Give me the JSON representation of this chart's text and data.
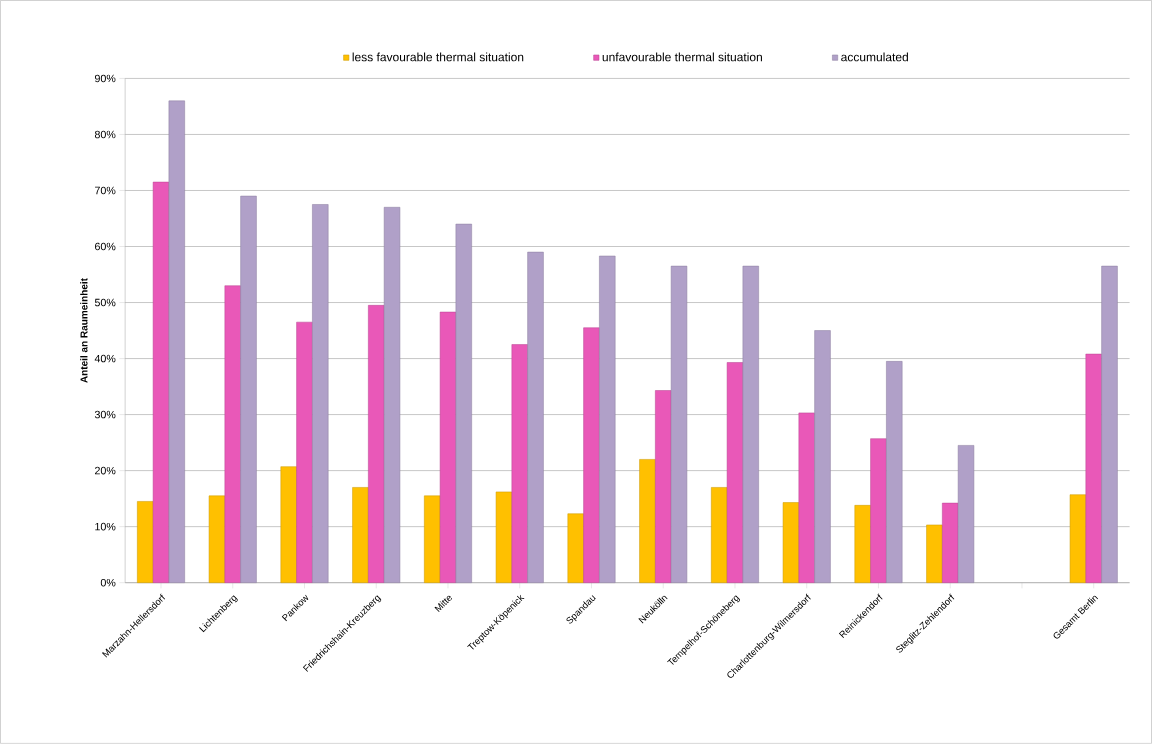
{
  "chart_data": {
    "type": "bar",
    "ylabel": "Anteil an Raumeinheit",
    "categories": [
      "Marzahn-Hellersdorf",
      "Lichtenberg",
      "Pankow",
      "Friedrichshain-Kreuzberg",
      "Mitte",
      "Treptow-Köpenick",
      "Spandau",
      "Neukölln",
      "Tempelhof-Schöneberg",
      "Charlottenburg-Wilmersdorf",
      "Reinickendorf",
      "Steglitz-Zehlendorf",
      null,
      "Gesamt Berlin"
    ],
    "series": [
      {
        "name": "less favourable thermal situation",
        "color": "#ffc000",
        "values": [
          14.5,
          15.5,
          20.7,
          17,
          15.5,
          16.2,
          12.3,
          22,
          17,
          14.3,
          13.8,
          10.3,
          null,
          15.7
        ]
      },
      {
        "name": "unfavourable thermal situation",
        "color": "#e958b8",
        "values": [
          71.5,
          53,
          46.5,
          49.5,
          48.3,
          42.5,
          45.5,
          34.3,
          39.3,
          30.3,
          25.7,
          14.2,
          null,
          40.8
        ]
      },
      {
        "name": "accumulated",
        "color": "#b0a0c8",
        "values": [
          86,
          69,
          67.5,
          67,
          64,
          59,
          58.3,
          56.5,
          56.5,
          45,
          39.5,
          24.5,
          null,
          56.5
        ]
      }
    ],
    "ylim": [
      0,
      90
    ],
    "yticks": [
      {
        "value": 0,
        "label": "0%"
      },
      {
        "value": 10,
        "label": "10%"
      },
      {
        "value": 20,
        "label": "20%"
      },
      {
        "value": 30,
        "label": "30%"
      },
      {
        "value": 40,
        "label": "40%"
      },
      {
        "value": 50,
        "label": "50%"
      },
      {
        "value": 60,
        "label": "60%"
      },
      {
        "value": 70,
        "label": "70%"
      },
      {
        "value": 80,
        "label": "80%"
      },
      {
        "value": 90,
        "label": "90%"
      }
    ],
    "grid": "y",
    "legend": "top"
  }
}
